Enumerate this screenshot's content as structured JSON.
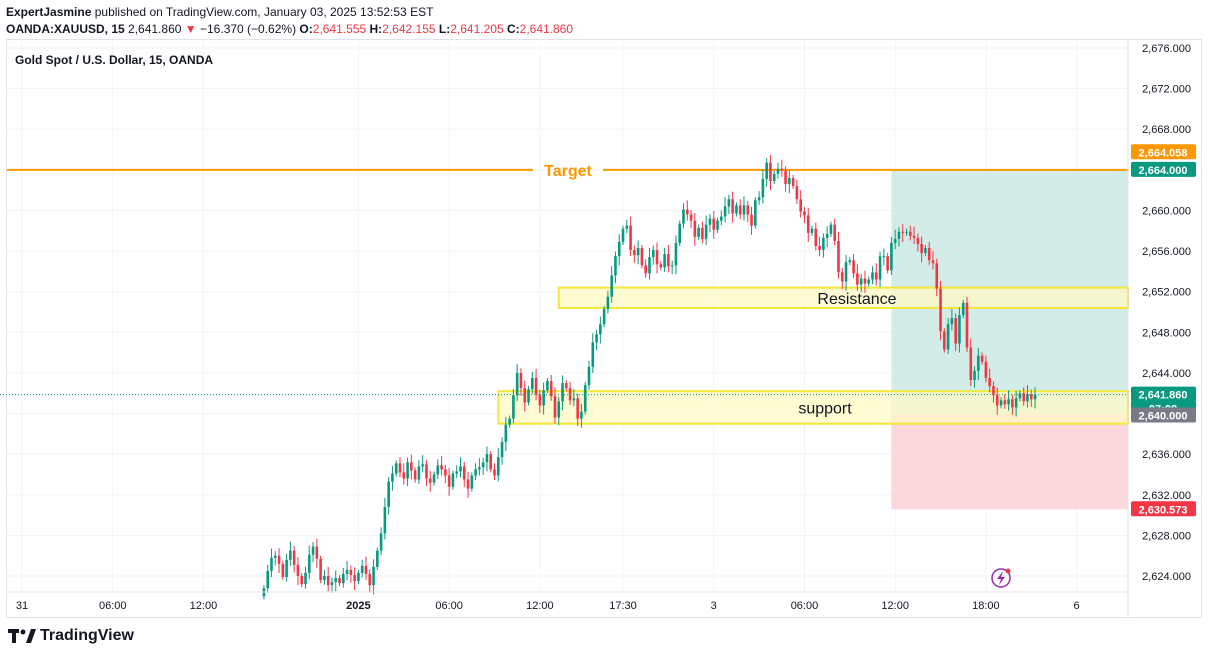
{
  "header": {
    "author": "ExpertJasmine",
    "published": "published on TradingView.com, January 03, 2025 13:52:53 EST",
    "symbol": "OANDA:XAUUSD, 15",
    "last": "2,641.860",
    "change": "−16.370 (−0.62%)",
    "o_label": "O:",
    "o_val": "2,641.555",
    "h_label": "H:",
    "h_val": "2,642.155",
    "l_label": "L:",
    "l_val": "2,641.205",
    "c_label": "C:",
    "c_val": "2,641.860"
  },
  "chart_title": "Gold Spot / U.S. Dollar, 15, OANDA",
  "footer": {
    "brand": "TradingView"
  },
  "colors": {
    "up": "#089981",
    "down": "#f23645",
    "target_line": "#ff9800",
    "zone_fill": "#fff9c4",
    "zone_stroke": "#f5e63a",
    "profit": "#cde9e3",
    "loss": "#fad4d7"
  },
  "chart_data": {
    "type": "candlestick",
    "title": "Gold Spot / U.S. Dollar, 15, OANDA",
    "y_ticks": [
      2624,
      2628,
      2632,
      2636,
      2640,
      2644,
      2648,
      2652,
      2656,
      2660,
      2664,
      2668,
      2672,
      2676
    ],
    "y_tick_labels": [
      "2,624.000",
      "2,628.000",
      "2,632.000",
      "2,636.000",
      "2,640.000",
      "2,644.000",
      "2,648.000",
      "2,652.000",
      "2,656.000",
      "2,660.000",
      "2,664.000",
      "2,668.000",
      "2,672.000",
      "2,676.000"
    ],
    "ylim": [
      2621.8,
      2677.0
    ],
    "x_labels": [
      {
        "text": "31",
        "i": 0
      },
      {
        "text": "06:00",
        "i": 24
      },
      {
        "text": "12:00",
        "i": 48
      },
      {
        "text": "2025",
        "i": 89,
        "bold": true
      },
      {
        "text": "06:00",
        "i": 113
      },
      {
        "text": "12:00",
        "i": 137
      },
      {
        "text": "17:30",
        "i": 159
      },
      {
        "text": "3",
        "i": 183
      },
      {
        "text": "06:00",
        "i": 207
      },
      {
        "text": "12:00",
        "i": 231
      },
      {
        "text": "18:00",
        "i": 255
      },
      {
        "text": "6",
        "i": 279
      }
    ],
    "candles_start_index": 64,
    "closes": [
      2622.8,
      2624.5,
      2625.8,
      2626.0,
      2625.2,
      2623.9,
      2625.6,
      2626.5,
      2625.1,
      2624.0,
      2623.2,
      2624.3,
      2626.1,
      2626.9,
      2625.7,
      2623.6,
      2624.0,
      2623.1,
      2623.4,
      2623.8,
      2623.3,
      2624.2,
      2624.6,
      2624.1,
      2623.5,
      2624.3,
      2625.0,
      2624.2,
      2623.1,
      2624.9,
      2626.5,
      2628.2,
      2630.8,
      2633.3,
      2634.1,
      2635.1,
      2634.2,
      2633.6,
      2635.2,
      2634.4,
      2633.5,
      2634.8,
      2635.0,
      2633.6,
      2633.2,
      2634.0,
      2634.9,
      2634.5,
      2633.9,
      2632.8,
      2634.1,
      2634.3,
      2634.8,
      2633.5,
      2632.6,
      2633.9,
      2634.5,
      2634.7,
      2635.2,
      2636.0,
      2634.5,
      2633.9,
      2635.7,
      2637.2,
      2638.9,
      2639.5,
      2641.8,
      2644.0,
      2642.5,
      2641.1,
      2642.4,
      2643.5,
      2641.9,
      2640.8,
      2642.3,
      2643.2,
      2641.7,
      2639.6,
      2641.2,
      2643.0,
      2642.5,
      2641.3,
      2641.5,
      2639.5,
      2640.2,
      2642.8,
      2644.6,
      2647.0,
      2647.8,
      2648.8,
      2650.3,
      2651.5,
      2653.6,
      2655.5,
      2656.9,
      2658.2,
      2658.5,
      2656.1,
      2655.6,
      2656.3,
      2654.6,
      2653.8,
      2655.4,
      2656.1,
      2654.7,
      2654.4,
      2655.7,
      2654.5,
      2654.6,
      2656.8,
      2658.7,
      2660.1,
      2659.6,
      2659.0,
      2657.4,
      2658.3,
      2657.2,
      2658.6,
      2659.2,
      2658.1,
      2659.0,
      2659.4,
      2660.4,
      2661.1,
      2659.7,
      2660.5,
      2659.6,
      2660.5,
      2659.6,
      2658.5,
      2661.0,
      2661.3,
      2663.1,
      2664.7,
      2662.9,
      2663.6,
      2664.1,
      2663.9,
      2662.6,
      2663.2,
      2662.4,
      2661.1,
      2659.9,
      2659.5,
      2657.8,
      2658.2,
      2656.5,
      2656.1,
      2657.3,
      2657.7,
      2658.6,
      2657.0,
      2653.9,
      2653.0,
      2654.9,
      2655.1,
      2653.8,
      2652.7,
      2653.3,
      2652.8,
      2653.2,
      2653.9,
      2653.2,
      2655.5,
      2655.5,
      2654.1,
      2656.8,
      2657.2,
      2657.9,
      2657.8,
      2657.9,
      2657.5,
      2657.3,
      2656.7,
      2655.8,
      2656.3,
      2655.1,
      2654.8,
      2652.3,
      2648.1,
      2646.3,
      2648.8,
      2649.4,
      2646.9,
      2649.7,
      2650.9,
      2646.5,
      2643.3,
      2644.2,
      2645.7,
      2645.1,
      2643.5,
      2642.7,
      2641.8,
      2640.8,
      2641.3,
      2640.9,
      2641.4,
      2640.6,
      2641.5,
      2642.0,
      2641.2,
      2641.9,
      2641.4,
      2641.86
    ],
    "hline": {
      "label": "Target",
      "value": 2664.0
    },
    "zones": [
      {
        "label": "Resistance",
        "from": 2650.4,
        "to": 2652.4,
        "start_i": 142
      },
      {
        "label": "support",
        "from": 2639.0,
        "to": 2642.2,
        "start_i": 126
      }
    ],
    "position": {
      "entry": 2640.0,
      "target": 2664.0,
      "stop": 2630.573,
      "start_i": 230
    },
    "price_labels": [
      {
        "text": "2,664.058",
        "value": 2664.058,
        "color": "#ff9800",
        "offset": -17
      },
      {
        "text": "2,664.000",
        "value": 2664.0,
        "color": "#089981",
        "offset": 0
      },
      {
        "text": "2,641.860",
        "value": 2641.86,
        "color": "#089981",
        "offset": 0
      },
      {
        "text": "07:08",
        "value": 2641.86,
        "color": "#089981",
        "offset": 14
      },
      {
        "text": "2,640.000",
        "value": 2640.0,
        "color": "#787b86",
        "offset": 2
      },
      {
        "text": "2,630.573",
        "value": 2630.573,
        "color": "#f23645",
        "offset": 0
      }
    ]
  }
}
